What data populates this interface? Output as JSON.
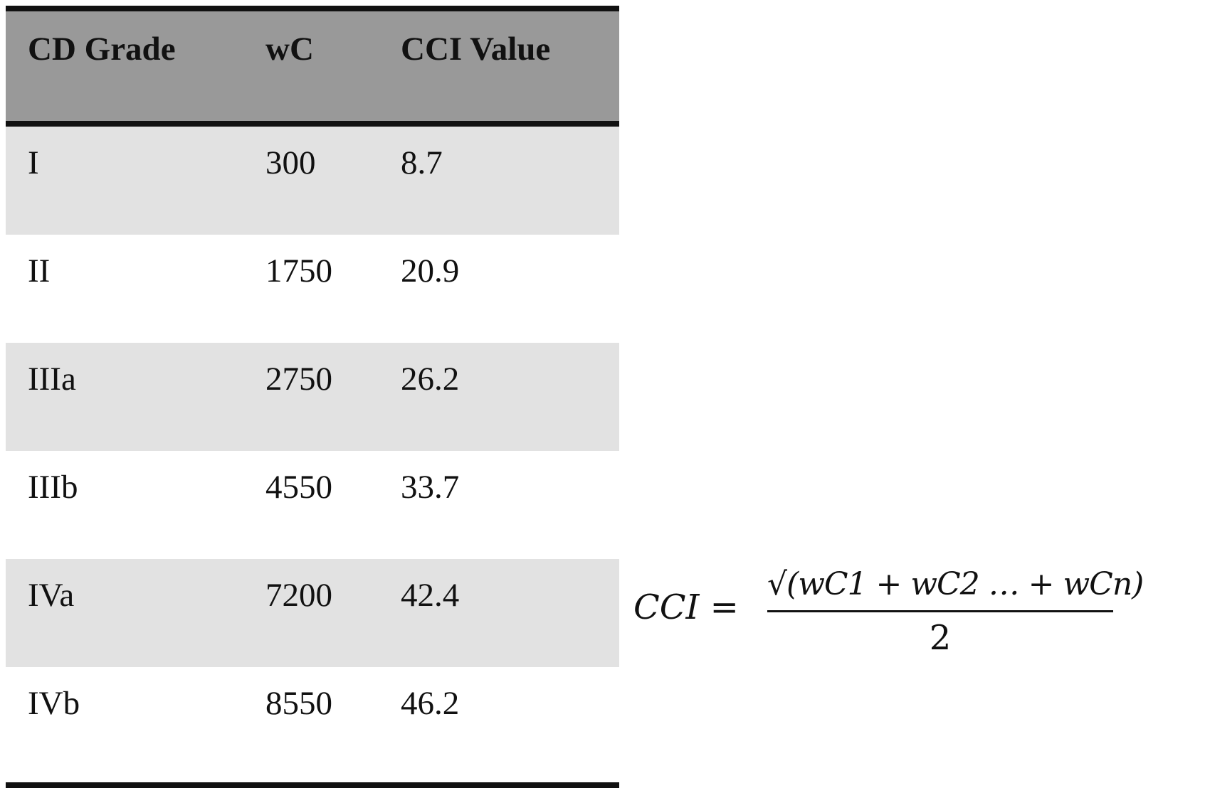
{
  "table": {
    "headers": [
      "CD Grade",
      "wC",
      "CCI Value"
    ],
    "rows": [
      {
        "grade": "I",
        "wc": "300",
        "cci": "8.7"
      },
      {
        "grade": "II",
        "wc": "1750",
        "cci": "20.9"
      },
      {
        "grade": "IIIa",
        "wc": "2750",
        "cci": "26.2"
      },
      {
        "grade": "IIIb",
        "wc": "4550",
        "cci": "33.7"
      },
      {
        "grade": "IVa",
        "wc": "7200",
        "cci": "42.4"
      },
      {
        "grade": "IVb",
        "wc": "8550",
        "cci": "46.2"
      }
    ],
    "colors": {
      "header_bg": "#999999",
      "shaded_row_bg": "#e2e2e2",
      "rule": "#111111"
    }
  },
  "formula": {
    "lhs": "CCI =",
    "numerator": "√(wC1 + wC2 … + wCn)",
    "denominator": "2"
  }
}
